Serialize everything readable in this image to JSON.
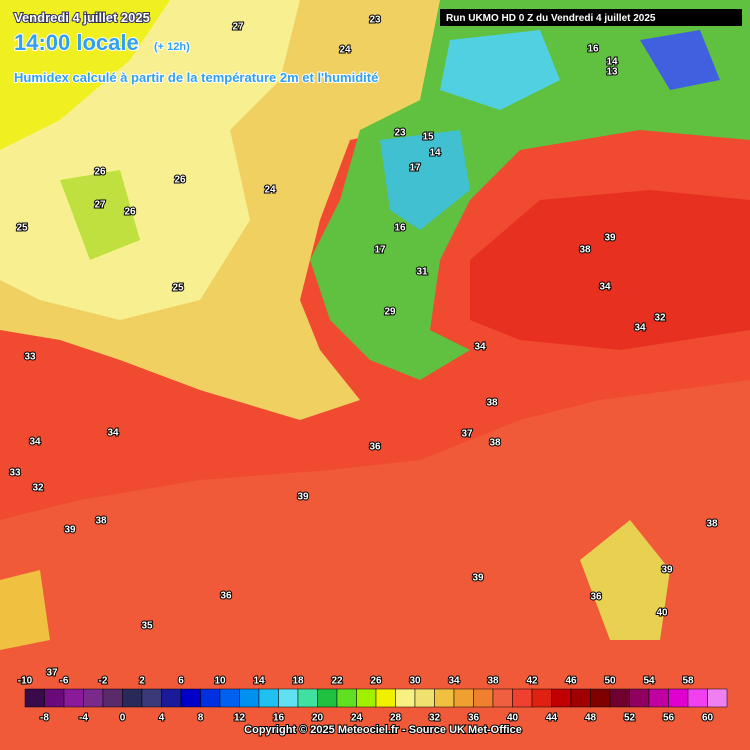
{
  "header": {
    "date": "Vendredi 4 juillet 2025",
    "time": "14:00 locale",
    "lead": "(+ 12h)",
    "subtitle": "Humidex calculé à partir de la température 2m et l'humidité",
    "run": "Run UKMO HD 0 Z du Vendredi 4 juillet 2025"
  },
  "map_labels": [
    27,
    23,
    24,
    26,
    26,
    27,
    26,
    25,
    24,
    25,
    23,
    15,
    14,
    17,
    16,
    17,
    31,
    29,
    34,
    38,
    39,
    34,
    34,
    32,
    33,
    34,
    34,
    33,
    32,
    36,
    37,
    38,
    38,
    39,
    39,
    38,
    36,
    35,
    39,
    38,
    39,
    40,
    36,
    37,
    16,
    13,
    14
  ],
  "legend": {
    "labels": [
      -10,
      -8,
      -6,
      -4,
      -2,
      0,
      2,
      4,
      6,
      8,
      10,
      12,
      14,
      16,
      18,
      20,
      22,
      24,
      26,
      28,
      30,
      32,
      34,
      36,
      38,
      40,
      42,
      44,
      46,
      48,
      50,
      52,
      54,
      56,
      58,
      60
    ],
    "colors": [
      "#3a0a4a",
      "#6a0a7a",
      "#8a1a9a",
      "#7a2a8a",
      "#5a2a6a",
      "#2a2a5a",
      "#3a3a7a",
      "#1a1a9a",
      "#0000c8",
      "#0030e0",
      "#0060f0",
      "#0090f0",
      "#20c0f0",
      "#60e0f0",
      "#40e0a0",
      "#20c040",
      "#60e020",
      "#a0f000",
      "#f0f000",
      "#f8f080",
      "#f0e070",
      "#f0c040",
      "#f0a030",
      "#f08030",
      "#f06040",
      "#f04030",
      "#e02010",
      "#c00000",
      "#a00000",
      "#800000",
      "#700030",
      "#900060",
      "#c000a0",
      "#e000d0",
      "#f040f0",
      "#f080f0"
    ]
  },
  "footer": {
    "copyright": "Copyright © 2025 Meteociel.fr - Source UK Met-Office"
  }
}
